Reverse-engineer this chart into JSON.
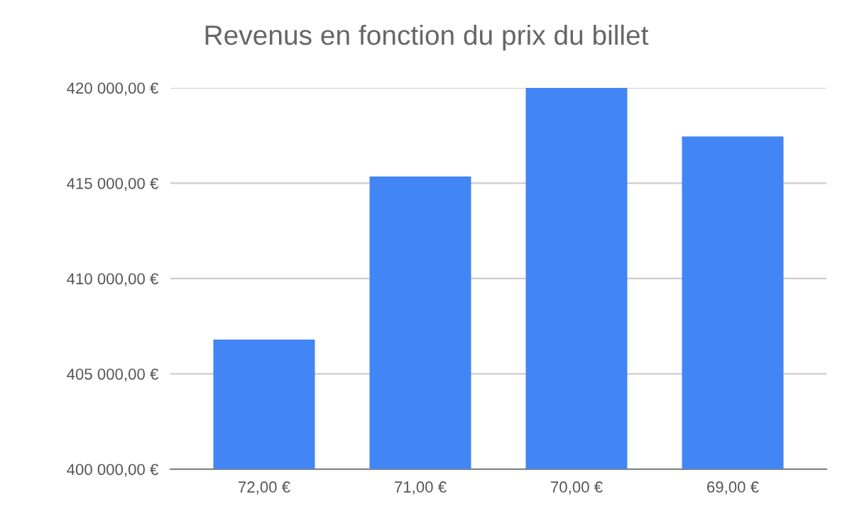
{
  "chart_data": {
    "type": "bar",
    "title": "Revenus en fonction du prix du billet",
    "categories": [
      "72,00 €",
      "71,00 €",
      "70,00 €",
      "69,00 €"
    ],
    "values": [
      406800,
      415350,
      420000,
      417450
    ],
    "color": "#4285f4",
    "ylim": [
      400000,
      420000
    ],
    "yticks": [
      {
        "value": 400000,
        "label": "400 000,00 €"
      },
      {
        "value": 405000,
        "label": "405 000,00 €"
      },
      {
        "value": 410000,
        "label": "410 000,00 €"
      },
      {
        "value": 415000,
        "label": "415 000,00 €"
      },
      {
        "value": 420000,
        "label": "420 000,00 €"
      }
    ],
    "grid": "y",
    "legend": false
  }
}
